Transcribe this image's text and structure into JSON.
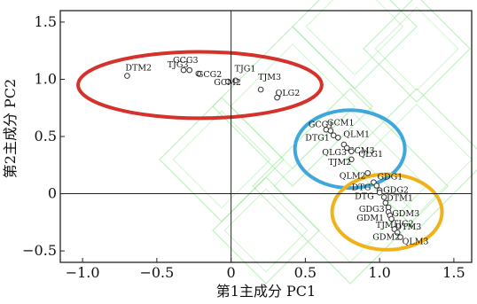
{
  "chart_data": {
    "type": "scatter",
    "title": "",
    "xlabel": "第1主成分 PC1",
    "ylabel": "第2主成分 PC2",
    "xlim": [
      -1.15,
      1.62
    ],
    "ylim": [
      -0.6,
      1.6
    ],
    "xticks": [
      -1.0,
      -0.5,
      0,
      0.5,
      1.0,
      1.5
    ],
    "xtick_labels": [
      "−1.0",
      "−0.5",
      "0",
      "0.5",
      "1.0",
      "1.5"
    ],
    "yticks": [
      -0.5,
      0,
      0.5,
      1.0,
      1.5
    ],
    "ytick_labels": [
      "−0.5",
      "0",
      "0.5",
      "1.0",
      "1.5"
    ],
    "reference_lines": {
      "x": 0,
      "y": 0
    },
    "grid": false,
    "points": [
      {
        "label": "DTM2",
        "x": -0.7,
        "y": 1.03
      },
      {
        "label": "GCG3",
        "x": -0.32,
        "y": 1.08
      },
      {
        "label": "TJG3",
        "x": -0.28,
        "y": 1.08
      },
      {
        "label": "GCG2",
        "x": -0.22,
        "y": 1.05
      },
      {
        "label": "TJG1",
        "x": 0.03,
        "y": 0.99
      },
      {
        "label": "GCM2",
        "x": -0.02,
        "y": 0.98
      },
      {
        "label": "TJM3",
        "x": 0.2,
        "y": 0.91
      },
      {
        "label": "QLG2",
        "x": 0.31,
        "y": 0.84
      },
      {
        "label": "GCG1",
        "x": 0.64,
        "y": 0.56
      },
      {
        "label": "GCM1",
        "x": 0.67,
        "y": 0.55
      },
      {
        "label": "DTG1",
        "x": 0.69,
        "y": 0.51
      },
      {
        "label": "QLM1",
        "x": 0.72,
        "y": 0.49
      },
      {
        "label": "GCM3",
        "x": 0.76,
        "y": 0.43
      },
      {
        "label": "QLG3",
        "x": 0.78,
        "y": 0.4
      },
      {
        "label": "QLG1",
        "x": 0.81,
        "y": 0.37
      },
      {
        "label": "TJM2",
        "x": 0.81,
        "y": 0.3
      },
      {
        "label": "QLM2",
        "x": 0.92,
        "y": 0.18
      },
      {
        "label": "GDG1",
        "x": 0.96,
        "y": 0.1
      },
      {
        "label": "DTG",
        "x": 0.98,
        "y": 0.07
      },
      {
        "label": "GDG2",
        "x": 1.0,
        "y": 0.03
      },
      {
        "label": "DTG",
        "x": 1.0,
        "y": 0.01
      },
      {
        "label": "DTM1",
        "x": 1.03,
        "y": -0.03
      },
      {
        "label": "GDG3",
        "x": 1.04,
        "y": -0.08
      },
      {
        "label": "GDM3",
        "x": 1.06,
        "y": -0.12
      },
      {
        "label": "GDM1",
        "x": 1.06,
        "y": -0.16
      },
      {
        "label": "TJM",
        "x": 1.07,
        "y": -0.19
      },
      {
        "label": "DTM3",
        "x": 1.08,
        "y": -0.22
      },
      {
        "label": "TJG2",
        "x": 1.1,
        "y": -0.31
      },
      {
        "label": "GDM2",
        "x": 1.12,
        "y": -0.34
      },
      {
        "label": "QLM3",
        "x": 1.14,
        "y": -0.38
      }
    ],
    "clusters": [
      {
        "color": "#d4322b",
        "cx": -0.21,
        "cy": 0.95,
        "rx": 0.82,
        "ry": 0.29
      },
      {
        "color": "#3ea7dc",
        "cx": 0.8,
        "cy": 0.39,
        "rx": 0.37,
        "ry": 0.34
      },
      {
        "color": "#f0b21a",
        "cx": 1.05,
        "cy": -0.16,
        "rx": 0.37,
        "ry": 0.33
      }
    ],
    "colors": {
      "axis": "#222222",
      "watermark": "#8ee88e",
      "marker_stroke": "#333333"
    }
  }
}
